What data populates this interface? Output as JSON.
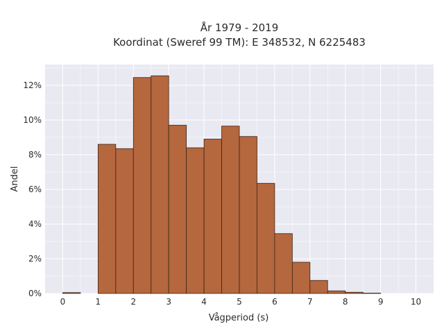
{
  "chart_data": {
    "type": "bar",
    "title_lines": [
      "År 1979 - 2019",
      "Koordinat (Sweref 99 TM): E 348532, N 6225483"
    ],
    "xlabel": "Vågperiod (s)",
    "ylabel": "Andel",
    "xlim": [
      -0.5,
      10.5
    ],
    "ylim": [
      0,
      13.2
    ],
    "x_ticks": [
      0,
      1,
      2,
      3,
      4,
      5,
      6,
      7,
      8,
      9,
      10
    ],
    "y_ticks": [
      0,
      2,
      4,
      6,
      8,
      10,
      12
    ],
    "y_tick_suffix": "%",
    "bin_width": 0.5,
    "bins": [
      {
        "start": 0.0,
        "value": 0.05
      },
      {
        "start": 1.0,
        "value": 8.6
      },
      {
        "start": 1.5,
        "value": 8.35
      },
      {
        "start": 2.0,
        "value": 12.45
      },
      {
        "start": 2.5,
        "value": 12.55
      },
      {
        "start": 3.0,
        "value": 9.7
      },
      {
        "start": 3.5,
        "value": 8.4
      },
      {
        "start": 4.0,
        "value": 8.9
      },
      {
        "start": 4.5,
        "value": 9.65
      },
      {
        "start": 5.0,
        "value": 9.05
      },
      {
        "start": 5.5,
        "value": 6.35
      },
      {
        "start": 6.0,
        "value": 3.45
      },
      {
        "start": 6.5,
        "value": 1.8
      },
      {
        "start": 7.0,
        "value": 0.75
      },
      {
        "start": 7.5,
        "value": 0.15
      },
      {
        "start": 8.0,
        "value": 0.07
      },
      {
        "start": 8.5,
        "value": 0.02
      }
    ],
    "grid": true,
    "colors": {
      "bar_fill": "#B5673E",
      "bar_edge": "#3a2418",
      "plot_background": "#E9E9F2",
      "grid": "#ffffff"
    }
  }
}
